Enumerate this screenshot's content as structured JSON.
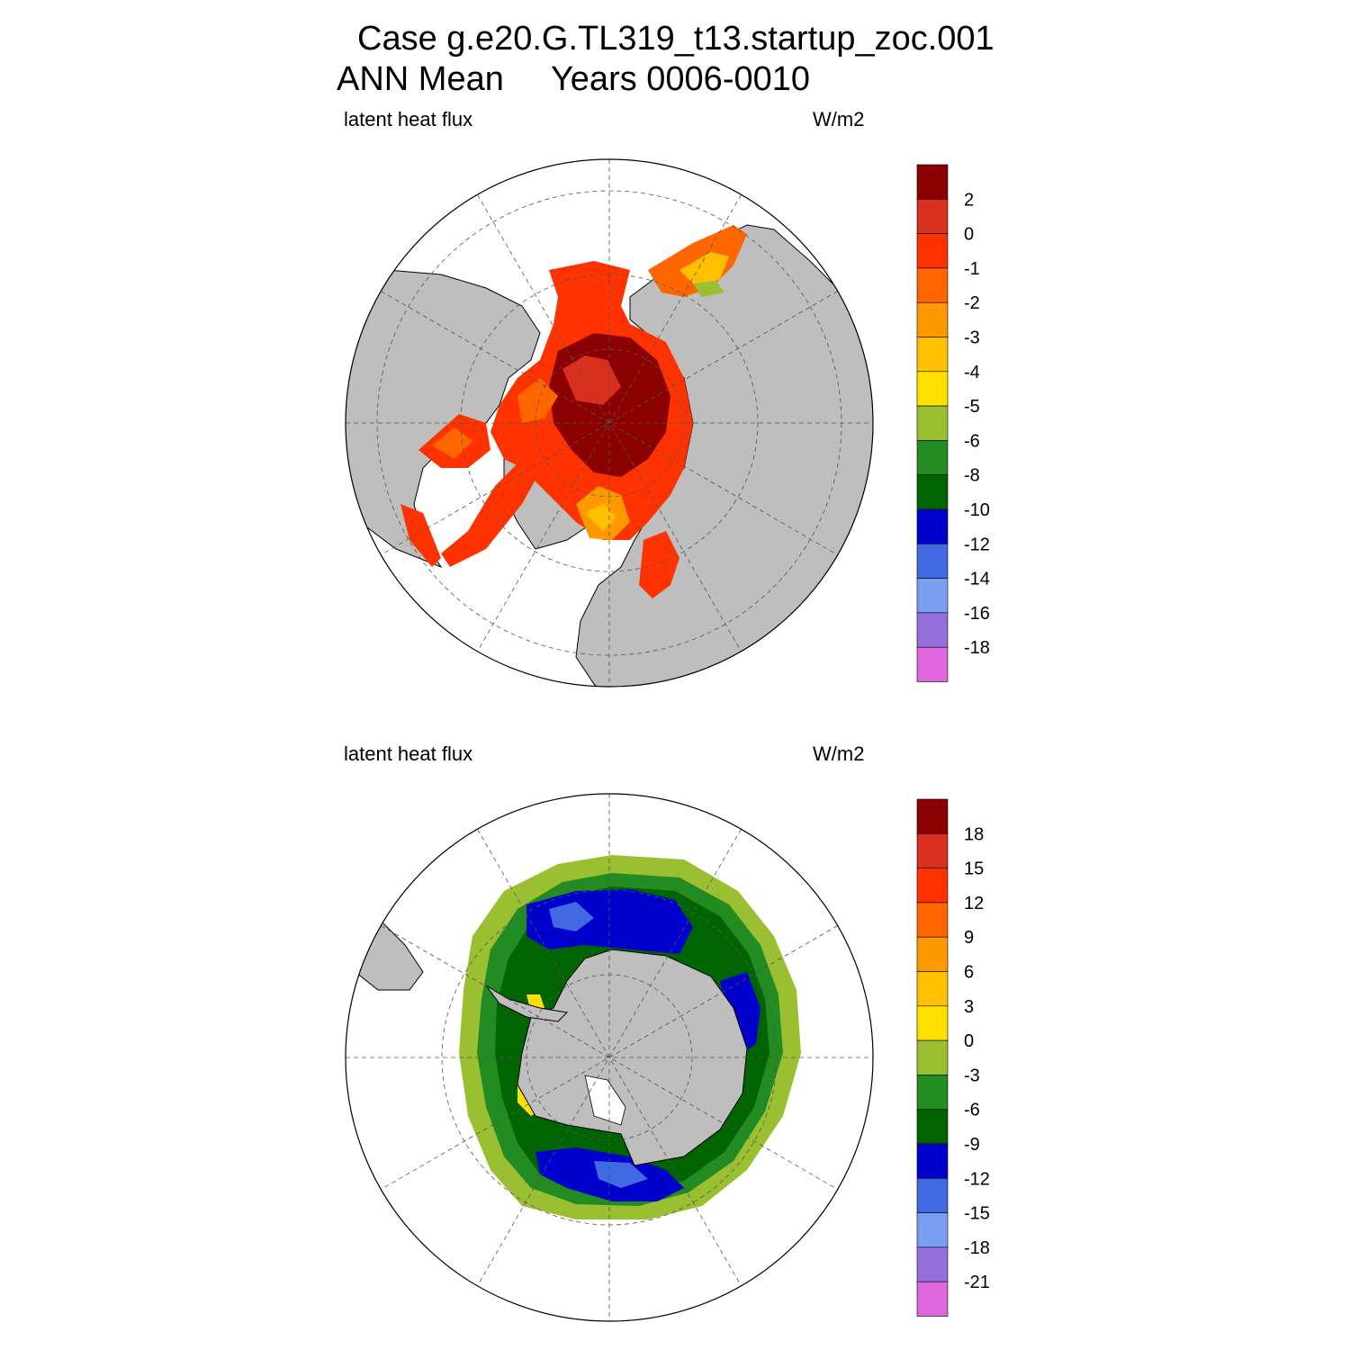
{
  "title": {
    "line1": "Case g.e20.G.TL319_t13.startup_zoc.001",
    "line2": "ANN Mean     Years 0006-0010"
  },
  "chart_data": [
    {
      "type": "heatmap",
      "projection": "polar-stereographic-north",
      "left_label": "latent heat flux",
      "right_label": "W/m2",
      "land_color": "#bebebe",
      "colorbar": {
        "levels": [
          2,
          0,
          -1,
          -2,
          -3,
          -4,
          -5,
          -6,
          -8,
          -10,
          -12,
          -14,
          -16,
          -18
        ],
        "colors": [
          "#8b0000",
          "#d7301f",
          "#ff3300",
          "#ff6600",
          "#ff9900",
          "#ffc000",
          "#ffe000",
          "#9abf31",
          "#228b22",
          "#006400",
          "#0000cd",
          "#4169e1",
          "#7b9ff0",
          "#9370db",
          "#e066dd"
        ]
      }
    },
    {
      "type": "heatmap",
      "projection": "polar-stereographic-south",
      "left_label": "latent heat flux",
      "right_label": "W/m2",
      "land_color": "#bebebe",
      "colorbar": {
        "levels": [
          18,
          15,
          12,
          9,
          6,
          3,
          0,
          -3,
          -6,
          -9,
          -12,
          -15,
          -18,
          -21
        ],
        "colors": [
          "#8b0000",
          "#d7301f",
          "#ff3300",
          "#ff6600",
          "#ff9900",
          "#ffc000",
          "#ffe000",
          "#9abf31",
          "#228b22",
          "#006400",
          "#0000cd",
          "#4169e1",
          "#7b9ff0",
          "#9370db",
          "#e066dd"
        ]
      }
    }
  ]
}
